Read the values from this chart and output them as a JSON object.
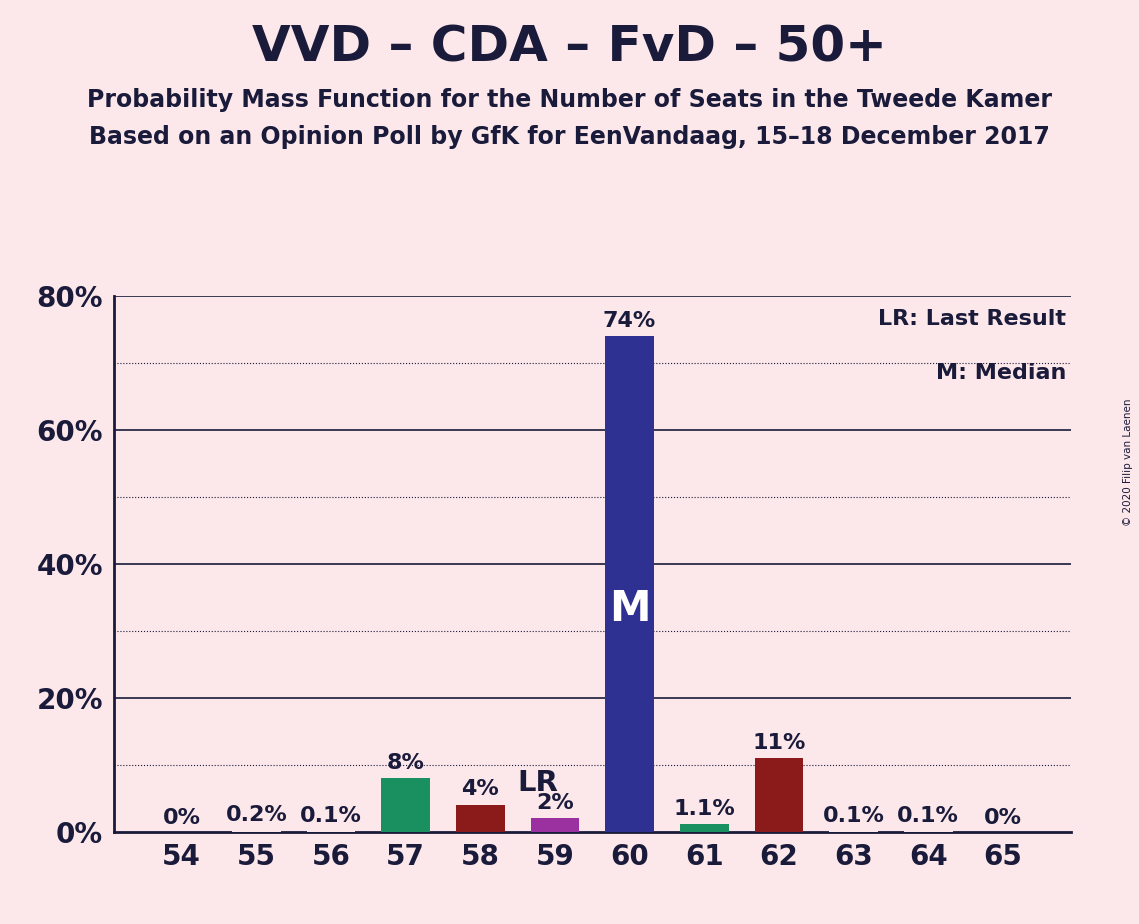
{
  "title": "VVD – CDA – FvD – 50+",
  "subtitle1": "Probability Mass Function for the Number of Seats in the Tweede Kamer",
  "subtitle2": "Based on an Opinion Poll by GfK for EenVandaag, 15–18 December 2017",
  "copyright": "© 2020 Filip van Laenen",
  "background_color": "#fce8ea",
  "seats": [
    54,
    55,
    56,
    57,
    58,
    59,
    60,
    61,
    62,
    63,
    64,
    65
  ],
  "probabilities": [
    0.0,
    0.2,
    0.1,
    8.0,
    4.0,
    2.0,
    74.0,
    1.1,
    11.0,
    0.1,
    0.1,
    0.0
  ],
  "labels": [
    "0%",
    "0.2%",
    "0.1%",
    "8%",
    "4%",
    "2%",
    "74%",
    "1.1%",
    "11%",
    "0.1%",
    "0.1%",
    "0%"
  ],
  "bar_colors": [
    "#fce8ea",
    "#fce8ea",
    "#fce8ea",
    "#1a9060",
    "#8b1a1a",
    "#9b30a0",
    "#2e3191",
    "#1a9060",
    "#8b1a1a",
    "#fce8ea",
    "#fce8ea",
    "#fce8ea"
  ],
  "median_seat": 60,
  "lr_seat": 58,
  "lr_label": "LR",
  "median_label": "M",
  "ylim": [
    0,
    80
  ],
  "yticks": [
    0,
    10,
    20,
    30,
    40,
    50,
    60,
    70,
    80
  ],
  "ytick_labels": [
    "0%",
    "",
    "20%",
    "",
    "40%",
    "",
    "60%",
    "",
    "80%"
  ],
  "solid_lines": [
    0,
    20,
    40,
    60,
    80
  ],
  "dotted_lines": [
    10,
    30,
    50,
    70
  ],
  "grid_color": "#1a1a3a",
  "axis_color": "#1a1a3a",
  "title_color": "#1a1a3a",
  "title_fontsize": 36,
  "subtitle_fontsize": 17,
  "label_fontsize": 16,
  "tick_fontsize": 20,
  "bar_width": 0.65
}
